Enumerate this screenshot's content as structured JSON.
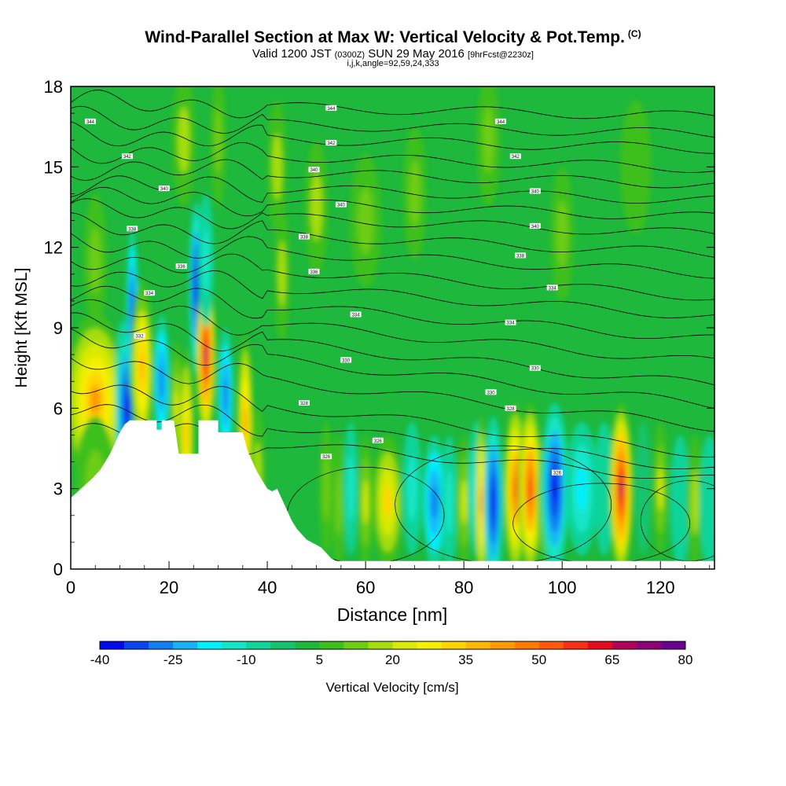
{
  "header": {
    "title": "Wind-Parallel Section at Max W: Vertical Velocity & Pot.Temp.",
    "copyright": "(C)",
    "subtitle_valid": "Valid 1200 JST",
    "subtitle_z": "(0300Z)",
    "subtitle_date": "SUN 29 May 2016",
    "subtitle_fcst": "[9hrFcst@2230z]",
    "subtitle2": "i,j,k,angle=92,59,24,333"
  },
  "colors": {
    "background_green": "#1db83c",
    "terrain": "#ffffff",
    "contour": "#000000"
  },
  "chart_data": {
    "type": "heatmap",
    "xlabel": "Distance [nm]",
    "ylabel": "Height [Kft MSL]",
    "xlim": [
      0,
      131
    ],
    "ylim": [
      0,
      18
    ],
    "xticks": [
      0,
      20,
      40,
      60,
      80,
      100,
      120
    ],
    "yticks": [
      0,
      3,
      6,
      9,
      12,
      15,
      18
    ],
    "colorbar": {
      "label": "Vertical Velocity [cm/s]",
      "ticks": [
        -40,
        -25,
        -10,
        5,
        20,
        35,
        50,
        65,
        80
      ],
      "levels": [
        -40,
        -35,
        -30,
        -25,
        -20,
        -15,
        -10,
        -5,
        0,
        5,
        10,
        15,
        20,
        25,
        30,
        35,
        40,
        45,
        50,
        55,
        60,
        65,
        70,
        75,
        80
      ],
      "colors": [
        "#0008f0",
        "#0a46ee",
        "#0f7ff3",
        "#16b4f6",
        "#00f0ff",
        "#12e6c8",
        "#10d49a",
        "#14c46e",
        "#1db83c",
        "#3ec01c",
        "#6dcd12",
        "#a6de0c",
        "#d8ea06",
        "#f6f000",
        "#ffd400",
        "#ffb800",
        "#ff9a00",
        "#ff7a00",
        "#ff5a0c",
        "#f73016",
        "#e60a1c",
        "#b3005a",
        "#8c0078",
        "#6a0090"
      ]
    },
    "velocity_cells": [
      {
        "x": 5,
        "y": 6.3,
        "w": 8,
        "v": 40
      },
      {
        "x": 5,
        "y": 3.2,
        "w": 5,
        "v": 10
      },
      {
        "x": 10.5,
        "y": 6.8,
        "w": 1.8,
        "v": -30
      },
      {
        "x": 11.5,
        "y": 6.0,
        "w": 3,
        "v": -38
      },
      {
        "x": 12.5,
        "y": 9.5,
        "w": 1.5,
        "v": -35
      },
      {
        "x": 14.5,
        "y": 7.5,
        "w": 3,
        "v": 38
      },
      {
        "x": 18.5,
        "y": 7.0,
        "w": 2,
        "v": -28
      },
      {
        "x": 21.5,
        "y": 6.0,
        "w": 1.5,
        "v": 25
      },
      {
        "x": 23.5,
        "y": 5.0,
        "w": 2,
        "v": 35
      },
      {
        "x": 25.5,
        "y": 10.5,
        "w": 1.8,
        "v": -38
      },
      {
        "x": 27.5,
        "y": 8.0,
        "w": 2.5,
        "v": 65
      },
      {
        "x": 27.5,
        "y": 11.5,
        "w": 2,
        "v": -15
      },
      {
        "x": 31.5,
        "y": 6.5,
        "w": 2,
        "v": -30
      },
      {
        "x": 35.5,
        "y": 5.5,
        "w": 2,
        "v": 40
      },
      {
        "x": 38,
        "y": 3.5,
        "w": 2,
        "v": 15
      },
      {
        "x": 52,
        "y": 3.0,
        "w": 1.8,
        "v": 10
      },
      {
        "x": 54.5,
        "y": 2.5,
        "w": 1.8,
        "v": 10
      },
      {
        "x": 57,
        "y": 3.0,
        "w": 1.8,
        "v": -15
      },
      {
        "x": 60,
        "y": 2.5,
        "w": 2,
        "v": 20
      },
      {
        "x": 64.5,
        "y": 2.5,
        "w": 4,
        "v": 30
      },
      {
        "x": 69.5,
        "y": 3.0,
        "w": 2.5,
        "v": -15
      },
      {
        "x": 74,
        "y": 2.5,
        "w": 3,
        "v": -30
      },
      {
        "x": 77,
        "y": 2.5,
        "w": 2,
        "v": -15
      },
      {
        "x": 80,
        "y": 2.5,
        "w": 2,
        "v": 20
      },
      {
        "x": 82.5,
        "y": 3.0,
        "w": 2,
        "v": -20
      },
      {
        "x": 83.5,
        "y": 2.5,
        "w": 1.5,
        "v": 40
      },
      {
        "x": 86,
        "y": 2.5,
        "w": 2.5,
        "v": -38
      },
      {
        "x": 90.5,
        "y": 3.0,
        "w": 3,
        "v": 50
      },
      {
        "x": 93.5,
        "y": 3.0,
        "w": 3,
        "v": 55
      },
      {
        "x": 96.5,
        "y": 2.5,
        "w": 2,
        "v": 25
      },
      {
        "x": 98.5,
        "y": 3.0,
        "w": 3.5,
        "v": -38
      },
      {
        "x": 104,
        "y": 3.0,
        "w": 4,
        "v": -20
      },
      {
        "x": 108.5,
        "y": 3.0,
        "w": 2.5,
        "v": -10
      },
      {
        "x": 112,
        "y": 3.0,
        "w": 3,
        "v": 65
      },
      {
        "x": 116.5,
        "y": 3.0,
        "w": 2,
        "v": -5
      },
      {
        "x": 120,
        "y": 3.0,
        "w": 2,
        "v": 20
      },
      {
        "x": 124,
        "y": 2.5,
        "w": 2.5,
        "v": -10
      },
      {
        "x": 127,
        "y": 2.5,
        "w": 2,
        "v": 15
      },
      {
        "x": 130,
        "y": 2.5,
        "w": 2.5,
        "v": -10
      },
      {
        "x": 5,
        "y": 11.5,
        "w": 3,
        "v": 10
      },
      {
        "x": 23,
        "y": 16.0,
        "w": 3,
        "v": 15
      },
      {
        "x": 30,
        "y": 16.0,
        "w": 2,
        "v": 12
      },
      {
        "x": 42,
        "y": 15.0,
        "w": 2.5,
        "v": 15
      },
      {
        "x": 50,
        "y": 13.5,
        "w": 3,
        "v": 15
      },
      {
        "x": 60,
        "y": 13.0,
        "w": 4,
        "v": 10
      },
      {
        "x": 70,
        "y": 14.0,
        "w": 3,
        "v": 12
      },
      {
        "x": 85,
        "y": 16.0,
        "w": 3,
        "v": 10
      },
      {
        "x": 100,
        "y": 12.5,
        "w": 3,
        "v": 10
      },
      {
        "x": 115,
        "y": 15.0,
        "w": 4,
        "v": 8
      },
      {
        "x": 43,
        "y": 11.0,
        "w": 2,
        "v": 15
      }
    ],
    "terrain": [
      [
        0,
        2.65
      ],
      [
        1.5,
        2.9
      ],
      [
        3,
        3.15
      ],
      [
        4.5,
        3.4
      ],
      [
        6,
        3.7
      ],
      [
        7,
        4.0
      ],
      [
        8,
        4.3
      ],
      [
        9,
        4.7
      ],
      [
        10,
        5.1
      ],
      [
        11,
        5.4
      ],
      [
        12,
        5.55
      ],
      [
        17.5,
        5.55
      ],
      [
        17.5,
        5.2
      ],
      [
        18.5,
        5.2
      ],
      [
        18.5,
        5.55
      ],
      [
        21,
        5.55
      ],
      [
        22,
        4.3
      ],
      [
        26,
        4.3
      ],
      [
        26,
        5.55
      ],
      [
        30,
        5.55
      ],
      [
        30,
        5.1
      ],
      [
        35,
        5.1
      ],
      [
        36,
        4.4
      ],
      [
        37,
        4.0
      ],
      [
        38,
        3.6
      ],
      [
        39,
        3.3
      ],
      [
        40,
        3.0
      ],
      [
        41,
        2.9
      ],
      [
        42,
        3.0
      ],
      [
        43,
        2.6
      ],
      [
        44,
        2.2
      ],
      [
        45,
        1.8
      ],
      [
        46,
        1.5
      ],
      [
        47,
        1.3
      ],
      [
        48,
        1.1
      ],
      [
        49,
        1.0
      ],
      [
        50,
        0.9
      ],
      [
        51,
        0.8
      ],
      [
        52,
        0.6
      ],
      [
        53,
        0.4
      ],
      [
        54,
        0.3
      ],
      [
        131,
        0.3
      ]
    ],
    "theta_contours": [
      {
        "y0": 17.4,
        "slope": -0.004,
        "label": "344"
      },
      {
        "y0": 16.75,
        "slope": -0.004,
        "label": "344"
      },
      {
        "y0": 16.2,
        "slope": -0.004,
        "label": "342"
      },
      {
        "y0": 15.6,
        "slope": -0.005,
        "label": "342"
      },
      {
        "y0": 15.0,
        "slope": -0.005,
        "label": "340"
      },
      {
        "y0": 14.4,
        "slope": -0.005,
        "label": "340"
      },
      {
        "y0": 13.9,
        "slope": -0.006,
        "label": "340"
      },
      {
        "y0": 13.4,
        "slope": -0.007,
        "label": "338"
      },
      {
        "y0": 12.8,
        "slope": -0.008,
        "label": "338"
      },
      {
        "y0": 12.2,
        "slope": -0.009,
        "label": "338"
      },
      {
        "y0": 11.6,
        "slope": -0.011,
        "label": "336"
      },
      {
        "y0": 11.0,
        "slope": -0.012,
        "label": "336"
      },
      {
        "y0": 10.4,
        "slope": -0.014,
        "label": "334"
      },
      {
        "y0": 9.8,
        "slope": -0.016,
        "label": "334"
      },
      {
        "y0": 9.2,
        "slope": -0.018,
        "label": "334"
      },
      {
        "y0": 8.6,
        "slope": -0.019,
        "label": "332"
      },
      {
        "y0": 7.8,
        "slope": -0.019,
        "label": "330"
      },
      {
        "y0": 6.9,
        "slope": -0.02,
        "label": "330"
      },
      {
        "y0": 6.1,
        "slope": -0.018,
        "label": "328"
      },
      {
        "y0": 5.3,
        "slope": -0.015,
        "label": "326"
      }
    ],
    "contour_labels": [
      {
        "x": 4,
        "y": 16.7,
        "text": "344"
      },
      {
        "x": 53,
        "y": 17.2,
        "text": "344"
      },
      {
        "x": 87.5,
        "y": 16.7,
        "text": "344"
      },
      {
        "x": 53,
        "y": 15.9,
        "text": "342"
      },
      {
        "x": 11.5,
        "y": 15.4,
        "text": "342"
      },
      {
        "x": 90.5,
        "y": 15.4,
        "text": "342"
      },
      {
        "x": 49.5,
        "y": 14.9,
        "text": "340"
      },
      {
        "x": 19,
        "y": 14.2,
        "text": "340"
      },
      {
        "x": 94.5,
        "y": 14.1,
        "text": "340"
      },
      {
        "x": 55,
        "y": 13.6,
        "text": "340"
      },
      {
        "x": 94.5,
        "y": 12.8,
        "text": "340"
      },
      {
        "x": 12.5,
        "y": 12.7,
        "text": "338"
      },
      {
        "x": 47.5,
        "y": 12.4,
        "text": "338"
      },
      {
        "x": 91.5,
        "y": 11.7,
        "text": "338"
      },
      {
        "x": 22.5,
        "y": 11.3,
        "text": "336"
      },
      {
        "x": 49.5,
        "y": 11.1,
        "text": "336"
      },
      {
        "x": 98,
        "y": 10.5,
        "text": "334"
      },
      {
        "x": 16,
        "y": 10.3,
        "text": "334"
      },
      {
        "x": 58,
        "y": 9.5,
        "text": "334"
      },
      {
        "x": 89.5,
        "y": 9.2,
        "text": "334"
      },
      {
        "x": 14,
        "y": 8.7,
        "text": "332"
      },
      {
        "x": 56,
        "y": 7.8,
        "text": "330"
      },
      {
        "x": 94.5,
        "y": 7.5,
        "text": "330"
      },
      {
        "x": 85.5,
        "y": 6.6,
        "text": "330"
      },
      {
        "x": 47.5,
        "y": 6.2,
        "text": "328"
      },
      {
        "x": 89.5,
        "y": 6.0,
        "text": "328"
      },
      {
        "x": 62.5,
        "y": 4.8,
        "text": "326"
      },
      {
        "x": 52,
        "y": 4.2,
        "text": "326"
      },
      {
        "x": 99,
        "y": 3.6,
        "text": "326"
      }
    ]
  }
}
